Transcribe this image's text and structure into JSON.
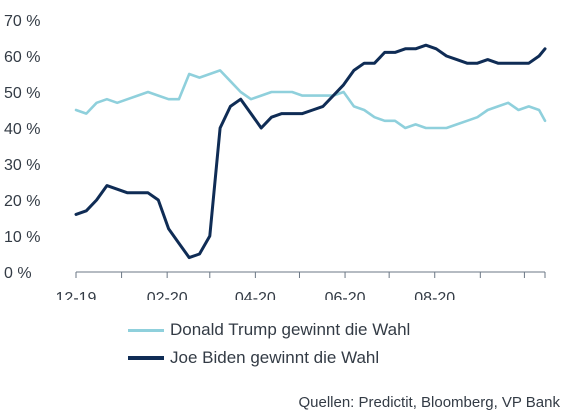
{
  "chart_data": {
    "type": "line",
    "title": "",
    "xlabel": "",
    "ylabel": "",
    "x_tick_labels": [
      "12-19",
      "02-20",
      "04-20",
      "06-20",
      "08-20"
    ],
    "y_ticks": [
      0,
      10,
      20,
      30,
      40,
      50,
      60,
      70
    ],
    "y_tick_labels": [
      "0 %",
      "10 %",
      "20 %",
      "30 %",
      "40 %",
      "50 %",
      "60 %",
      "70 %"
    ],
    "ylim": [
      0,
      70
    ],
    "xlim": [
      "2019-12-01",
      "2020-10-15"
    ],
    "grid": false,
    "legend_placement": "bottom",
    "series": [
      {
        "name": "Donald Trump gewinnt die Wahl",
        "color": "#8fd0dc",
        "x": [
          "2019-12-01",
          "2019-12-08",
          "2019-12-15",
          "2019-12-22",
          "2019-12-29",
          "2020-01-05",
          "2020-01-12",
          "2020-01-19",
          "2020-01-26",
          "2020-02-02",
          "2020-02-09",
          "2020-02-16",
          "2020-02-23",
          "2020-03-01",
          "2020-03-08",
          "2020-03-15",
          "2020-03-22",
          "2020-03-29",
          "2020-04-05",
          "2020-04-12",
          "2020-04-19",
          "2020-04-26",
          "2020-05-03",
          "2020-05-10",
          "2020-05-17",
          "2020-05-24",
          "2020-05-31",
          "2020-06-07",
          "2020-06-14",
          "2020-06-21",
          "2020-06-28",
          "2020-07-05",
          "2020-07-12",
          "2020-07-19",
          "2020-07-26",
          "2020-08-02",
          "2020-08-09",
          "2020-08-16",
          "2020-08-23",
          "2020-08-30",
          "2020-09-06",
          "2020-09-13",
          "2020-09-20",
          "2020-09-27",
          "2020-10-04",
          "2020-10-11",
          "2020-10-15"
        ],
        "y": [
          45,
          44,
          47,
          48,
          47,
          48,
          49,
          50,
          49,
          48,
          48,
          55,
          54,
          55,
          56,
          53,
          50,
          48,
          49,
          50,
          50,
          50,
          49,
          49,
          49,
          49,
          50,
          46,
          45,
          43,
          42,
          42,
          40,
          41,
          40,
          40,
          40,
          41,
          42,
          43,
          45,
          46,
          47,
          45,
          46,
          45,
          42
        ]
      },
      {
        "name": "Joe Biden gewinnt die Wahl",
        "color": "#0f2c55",
        "x": [
          "2019-12-01",
          "2019-12-08",
          "2019-12-15",
          "2019-12-22",
          "2019-12-29",
          "2020-01-05",
          "2020-01-12",
          "2020-01-19",
          "2020-01-26",
          "2020-02-02",
          "2020-02-09",
          "2020-02-16",
          "2020-02-23",
          "2020-03-01",
          "2020-03-08",
          "2020-03-15",
          "2020-03-22",
          "2020-03-29",
          "2020-04-05",
          "2020-04-12",
          "2020-04-19",
          "2020-04-26",
          "2020-05-03",
          "2020-05-10",
          "2020-05-17",
          "2020-05-24",
          "2020-05-31",
          "2020-06-07",
          "2020-06-14",
          "2020-06-21",
          "2020-06-28",
          "2020-07-05",
          "2020-07-12",
          "2020-07-19",
          "2020-07-26",
          "2020-08-02",
          "2020-08-09",
          "2020-08-16",
          "2020-08-23",
          "2020-08-30",
          "2020-09-06",
          "2020-09-13",
          "2020-09-20",
          "2020-09-27",
          "2020-10-04",
          "2020-10-11",
          "2020-10-15"
        ],
        "y": [
          16,
          17,
          20,
          24,
          23,
          22,
          22,
          22,
          20,
          12,
          8,
          4,
          5,
          10,
          40,
          46,
          48,
          44,
          40,
          43,
          44,
          44,
          44,
          45,
          46,
          49,
          52,
          56,
          58,
          58,
          61,
          61,
          62,
          62,
          63,
          62,
          60,
          59,
          58,
          58,
          59,
          58,
          58,
          58,
          58,
          60,
          62
        ]
      }
    ]
  },
  "source_text": "Quellen: Predictit, Bloomberg, VP Bank"
}
